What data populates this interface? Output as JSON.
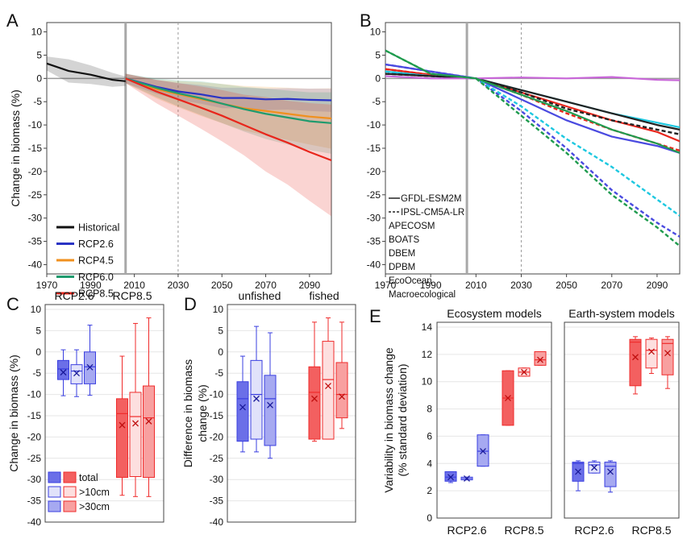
{
  "chart_data": [
    {
      "panel": "A",
      "type": "line",
      "ylabel": "Change in biomass (%)",
      "xlim": [
        1970,
        2100
      ],
      "ylim": [
        -42,
        12
      ],
      "x_ticks": [
        1970,
        1990,
        2010,
        2030,
        2050,
        2070,
        2090
      ],
      "y_ticks": [
        10,
        5,
        0,
        -5,
        -10,
        -15,
        -20,
        -25,
        -30,
        -35,
        -40
      ],
      "vlines": {
        "solid": 2006,
        "dashed": 2030
      },
      "legend_position": "bottom-left",
      "legend": [
        "Historical",
        "RCP2.6",
        "RCP4.5",
        "RCP6.0",
        "RCP8.5"
      ],
      "colors": {
        "Historical": "#111111",
        "RCP2.6": "#2a33c4",
        "RCP4.5": "#f0901e",
        "RCP6.0": "#1f9b6e",
        "RCP8.5": "#e8261c"
      },
      "series": [
        {
          "name": "Historical",
          "x": [
            1970,
            1980,
            1990,
            2000,
            2006
          ],
          "y": [
            3.2,
            1.6,
            0.8,
            -0.3,
            -0.6
          ],
          "band": [
            1.5,
            2.5,
            2,
            1.5,
            1
          ]
        },
        {
          "name": "RCP2.6",
          "x": [
            2006,
            2020,
            2030,
            2040,
            2050,
            2060,
            2070,
            2080,
            2090,
            2100
          ],
          "y": [
            0,
            -1.8,
            -2.8,
            -3.4,
            -4.2,
            -4.2,
            -4.5,
            -4.4,
            -4.6,
            -4.7
          ],
          "band": [
            1,
            1.5,
            1.8,
            2,
            2.2,
            2.2,
            2.3,
            2.3,
            2.4,
            2.5
          ]
        },
        {
          "name": "RCP4.5",
          "x": [
            2006,
            2020,
            2030,
            2040,
            2050,
            2060,
            2070,
            2080,
            2090,
            2100
          ],
          "y": [
            0,
            -2.3,
            -3.4,
            -4.4,
            -5.4,
            -6.4,
            -7.0,
            -7.6,
            -8.2,
            -8.6
          ],
          "band": [
            1,
            2,
            2.8,
            3.6,
            4.2,
            4.8,
            5.2,
            5.6,
            6,
            6.5
          ]
        },
        {
          "name": "RCP6.0",
          "x": [
            2006,
            2020,
            2030,
            2040,
            2050,
            2060,
            2070,
            2080,
            2090,
            2100
          ],
          "y": [
            0,
            -2.0,
            -3.2,
            -4.2,
            -5.4,
            -6.6,
            -7.6,
            -8.4,
            -9.2,
            -9.6
          ],
          "band": [
            1,
            2,
            2.8,
            3.6,
            4.2,
            4.8,
            5.4,
            5.8,
            6.2,
            6.6
          ]
        },
        {
          "name": "RCP8.5",
          "x": [
            2006,
            2020,
            2030,
            2040,
            2050,
            2060,
            2070,
            2080,
            2090,
            2100
          ],
          "y": [
            0,
            -2.8,
            -4.5,
            -6.2,
            -8.0,
            -10.0,
            -12.0,
            -13.8,
            -15.8,
            -17.6
          ],
          "band": [
            1,
            2.5,
            3.5,
            4.5,
            5.5,
            6.5,
            8,
            9,
            10.5,
            12
          ]
        }
      ]
    },
    {
      "panel": "B",
      "type": "line",
      "xlim": [
        1970,
        2100
      ],
      "ylim": [
        -42,
        12
      ],
      "x_ticks": [
        1970,
        1990,
        2010,
        2030,
        2050,
        2070,
        2090
      ],
      "y_ticks": [
        10,
        5,
        0,
        -5,
        -10,
        -15,
        -20,
        -25,
        -30,
        -35,
        -40
      ],
      "vlines": {
        "solid": 2006,
        "dashed": 2030
      },
      "legend_position": "bottom-left",
      "legend": [
        "GFDL-ESM2M",
        "IPSL-CM5A-LR",
        "APECOSM",
        "BOATS",
        "DBEM",
        "DPBM",
        "EcoOcean",
        "Macroecological"
      ],
      "colors": {
        "APECOSM": "#e8261c",
        "BOATS": "#4a4ae0",
        "DBEM": "#1ec8e0",
        "DPBM": "#222222",
        "EcoOcean": "#c866d8",
        "Macroecological": "#1f9b4e"
      },
      "series": [
        {
          "name": "APECOSM GFDL-ESM2M",
          "style": "solid",
          "x": [
            1970,
            1990,
            2010,
            2030,
            2050,
            2070,
            2090,
            2100
          ],
          "y": [
            2,
            0.8,
            0,
            -3,
            -6,
            -9,
            -11.5,
            -13.5
          ]
        },
        {
          "name": "APECOSM IPSL-CM5A-LR",
          "style": "dashed",
          "x": [
            1970,
            1990,
            2010,
            2030,
            2050,
            2070,
            2090,
            2100
          ],
          "y": [
            2,
            0.8,
            0,
            -3.5,
            -7.5,
            -11,
            -14,
            -15.5
          ]
        },
        {
          "name": "BOATS GFDL-ESM2M",
          "style": "solid",
          "x": [
            1970,
            1990,
            2010,
            2030,
            2050,
            2070,
            2090,
            2100
          ],
          "y": [
            3,
            1.5,
            0,
            -4.5,
            -9,
            -12.5,
            -14.5,
            -16
          ]
        },
        {
          "name": "BOATS IPSL-CM5A-LR",
          "style": "dashed",
          "x": [
            1970,
            1990,
            2010,
            2030,
            2050,
            2070,
            2090,
            2100
          ],
          "y": [
            3,
            1.5,
            0,
            -7,
            -15,
            -24,
            -31,
            -34
          ]
        },
        {
          "name": "DBEM GFDL-ESM2M",
          "style": "solid",
          "x": [
            1970,
            1990,
            2010,
            2030,
            2050,
            2070,
            2090,
            2100
          ],
          "y": [
            1.5,
            0.5,
            0,
            -2.5,
            -5,
            -7.5,
            -9.5,
            -10.5
          ]
        },
        {
          "name": "DBEM IPSL-CM5A-LR",
          "style": "dashed",
          "x": [
            1970,
            1990,
            2010,
            2030,
            2050,
            2070,
            2090,
            2100
          ],
          "y": [
            1.5,
            0.5,
            0,
            -6,
            -13,
            -19,
            -26,
            -29.5
          ]
        },
        {
          "name": "DPBM GFDL-ESM2M",
          "style": "solid",
          "x": [
            1970,
            1990,
            2010,
            2030,
            2050,
            2070,
            2090,
            2100
          ],
          "y": [
            1,
            0.5,
            0,
            -2.5,
            -5,
            -7.5,
            -10,
            -11
          ]
        },
        {
          "name": "DPBM IPSL-CM5A-LR",
          "style": "dashed",
          "x": [
            1970,
            1990,
            2010,
            2030,
            2050,
            2070,
            2090,
            2100
          ],
          "y": [
            1,
            0.5,
            0,
            -3,
            -6.5,
            -9,
            -11,
            -12
          ]
        },
        {
          "name": "EcoOcean GFDL-ESM2M",
          "style": "solid",
          "x": [
            1970,
            1990,
            2010,
            2030,
            2050,
            2070,
            2090,
            2100
          ],
          "y": [
            0.5,
            0,
            0,
            0.2,
            0,
            0.3,
            -0.3,
            -0.4
          ]
        },
        {
          "name": "Macroecological GFDL-ESM2M",
          "style": "solid",
          "x": [
            1970,
            1990,
            2010,
            2030,
            2050,
            2070,
            2090,
            2100
          ],
          "y": [
            6,
            1,
            0,
            -3.5,
            -7,
            -11,
            -14,
            -16
          ]
        },
        {
          "name": "Macroecological IPSL-CM5A-LR",
          "style": "dashed",
          "x": [
            1970,
            1990,
            2010,
            2030,
            2050,
            2070,
            2090,
            2100
          ],
          "y": [
            6,
            1,
            0,
            -8,
            -16,
            -25,
            -32,
            -36
          ]
        }
      ]
    },
    {
      "panel": "C",
      "type": "box",
      "ylabel": "Change in biomass (%)",
      "groups": [
        "RCP2.6",
        "RCP8.5"
      ],
      "ylim": [
        -40,
        10
      ],
      "y_ticks": [
        10,
        5,
        0,
        -5,
        -10,
        -15,
        -20,
        -25,
        -30,
        -35,
        -40
      ],
      "legend_position": "bottom-left",
      "legend": [
        "total",
        ">10cm",
        ">30cm"
      ],
      "boxes": [
        {
          "group": "RCP2.6",
          "size": "total",
          "whisker": [
            -10.3,
            0.5
          ],
          "box": [
            -6.5,
            -2
          ],
          "median": -4,
          "mean": -4.8
        },
        {
          "group": "RCP2.6",
          "size": ">10cm",
          "whisker": [
            -10.5,
            0.5
          ],
          "box": [
            -7.5,
            -3
          ],
          "median": -4.5,
          "mean": -5
        },
        {
          "group": "RCP2.6",
          "size": ">30cm",
          "whisker": [
            -10.2,
            6.3
          ],
          "box": [
            -7.5,
            0
          ],
          "median": -3.5,
          "mean": -3.6
        },
        {
          "group": "RCP8.5",
          "size": "total",
          "whisker": [
            -33.7,
            -1
          ],
          "box": [
            -29.5,
            -11
          ],
          "median": -14.5,
          "mean": -17.2
        },
        {
          "group": "RCP8.5",
          "size": ">10cm",
          "whisker": [
            -34,
            6.7
          ],
          "box": [
            -29.3,
            -9.5
          ],
          "median": -15.2,
          "mean": -16.8
        },
        {
          "group": "RCP8.5",
          "size": ">30cm",
          "whisker": [
            -34,
            8
          ],
          "box": [
            -29.5,
            -8
          ],
          "median": -15.5,
          "mean": -16.3
        }
      ]
    },
    {
      "panel": "D",
      "type": "box",
      "ylabel": "Difference in biomass change (%)",
      "groups": [
        "unfished",
        "fished"
      ],
      "ylim": [
        -40,
        10
      ],
      "y_ticks": [
        10,
        5,
        0,
        -5,
        -10,
        -15,
        -20,
        -25,
        -30,
        -35,
        -40
      ],
      "boxes": [
        {
          "group": "unfished",
          "size": "total",
          "whisker": [
            -23.5,
            -1
          ],
          "box": [
            -21,
            -7
          ],
          "median": -11,
          "mean": -13
        },
        {
          "group": "unfished",
          "size": ">10cm",
          "whisker": [
            -23.5,
            6
          ],
          "box": [
            -20.5,
            -2
          ],
          "median": -10,
          "mean": -11
        },
        {
          "group": "unfished",
          "size": ">30cm",
          "whisker": [
            -25,
            4.5
          ],
          "box": [
            -22,
            -5.5
          ],
          "median": -11,
          "mean": -12.5
        },
        {
          "group": "fished",
          "size": "total",
          "whisker": [
            -21,
            7
          ],
          "box": [
            -20.5,
            -3.5
          ],
          "median": -9.5,
          "mean": -11
        },
        {
          "group": "fished",
          "size": ">10cm",
          "whisker": [
            -20.5,
            8
          ],
          "box": [
            -20.5,
            2.5
          ],
          "median": -6.5,
          "mean": -8
        },
        {
          "group": "fished",
          "size": ">30cm",
          "whisker": [
            -18,
            7
          ],
          "box": [
            -15.5,
            -2.5
          ],
          "median": -10,
          "mean": -10.5
        }
      ]
    },
    {
      "panel": "E",
      "type": "box",
      "ylabel": "Variability in biomass change (% standard deviation)",
      "ylim": [
        0,
        14
      ],
      "y_ticks": [
        0,
        2,
        4,
        6,
        8,
        10,
        12,
        14
      ],
      "subpanels": [
        {
          "title": "Ecosystem models",
          "groups": [
            "RCP2.6",
            "RCP8.5"
          ],
          "boxes": [
            {
              "group": "RCP2.6",
              "size": "total",
              "whisker": [
                2.6,
                3.4
              ],
              "box": [
                2.7,
                3.4
              ],
              "median": 3.0,
              "mean": 3.0
            },
            {
              "group": "RCP2.6",
              "size": ">10cm",
              "whisker": [
                2.8,
                3.0
              ],
              "box": [
                2.8,
                3.0
              ],
              "median": 2.9,
              "mean": 2.9
            },
            {
              "group": "RCP2.6",
              "size": ">30cm",
              "whisker": [
                3.8,
                6.1
              ],
              "box": [
                3.8,
                6.1
              ],
              "median": 4.9,
              "mean": 4.9
            },
            {
              "group": "RCP8.5",
              "size": "total",
              "whisker": [
                6.8,
                10.8
              ],
              "box": [
                6.8,
                10.8
              ],
              "median": 8.8,
              "mean": 8.8
            },
            {
              "group": "RCP8.5",
              "size": ">10cm",
              "whisker": [
                10.4,
                11.0
              ],
              "box": [
                10.4,
                11.0
              ],
              "median": 10.7,
              "mean": 10.7
            },
            {
              "group": "RCP8.5",
              "size": ">30cm",
              "whisker": [
                11.2,
                12.2
              ],
              "box": [
                11.2,
                12.2
              ],
              "median": 11.6,
              "mean": 11.6
            }
          ]
        },
        {
          "title": "Earth-system models",
          "groups": [
            "RCP2.6",
            "RCP8.5"
          ],
          "boxes": [
            {
              "group": "RCP2.6",
              "size": "total",
              "whisker": [
                2.0,
                4.2
              ],
              "box": [
                2.7,
                4.1
              ],
              "median": 4.0,
              "mean": 3.4
            },
            {
              "group": "RCP2.6",
              "size": ">10cm",
              "whisker": [
                3.3,
                4.2
              ],
              "box": [
                3.3,
                4.1
              ],
              "median": 3.9,
              "mean": 3.7
            },
            {
              "group": "RCP2.6",
              "size": ">30cm",
              "whisker": [
                1.9,
                4.2
              ],
              "box": [
                2.3,
                4.1
              ],
              "median": 3.8,
              "mean": 3.4
            },
            {
              "group": "RCP8.5",
              "size": "total",
              "whisker": [
                9.1,
                13.3
              ],
              "box": [
                9.7,
                13.1
              ],
              "median": 12.9,
              "mean": 11.8
            },
            {
              "group": "RCP8.5",
              "size": ">10cm",
              "whisker": [
                10.6,
                13.2
              ],
              "box": [
                11.0,
                13.1
              ],
              "median": 12.3,
              "mean": 12.2
            },
            {
              "group": "RCP8.5",
              "size": ">30cm",
              "whisker": [
                9.5,
                13.3
              ],
              "box": [
                10.5,
                13.1
              ],
              "median": 12.8,
              "mean": 12.1
            }
          ]
        }
      ]
    }
  ]
}
